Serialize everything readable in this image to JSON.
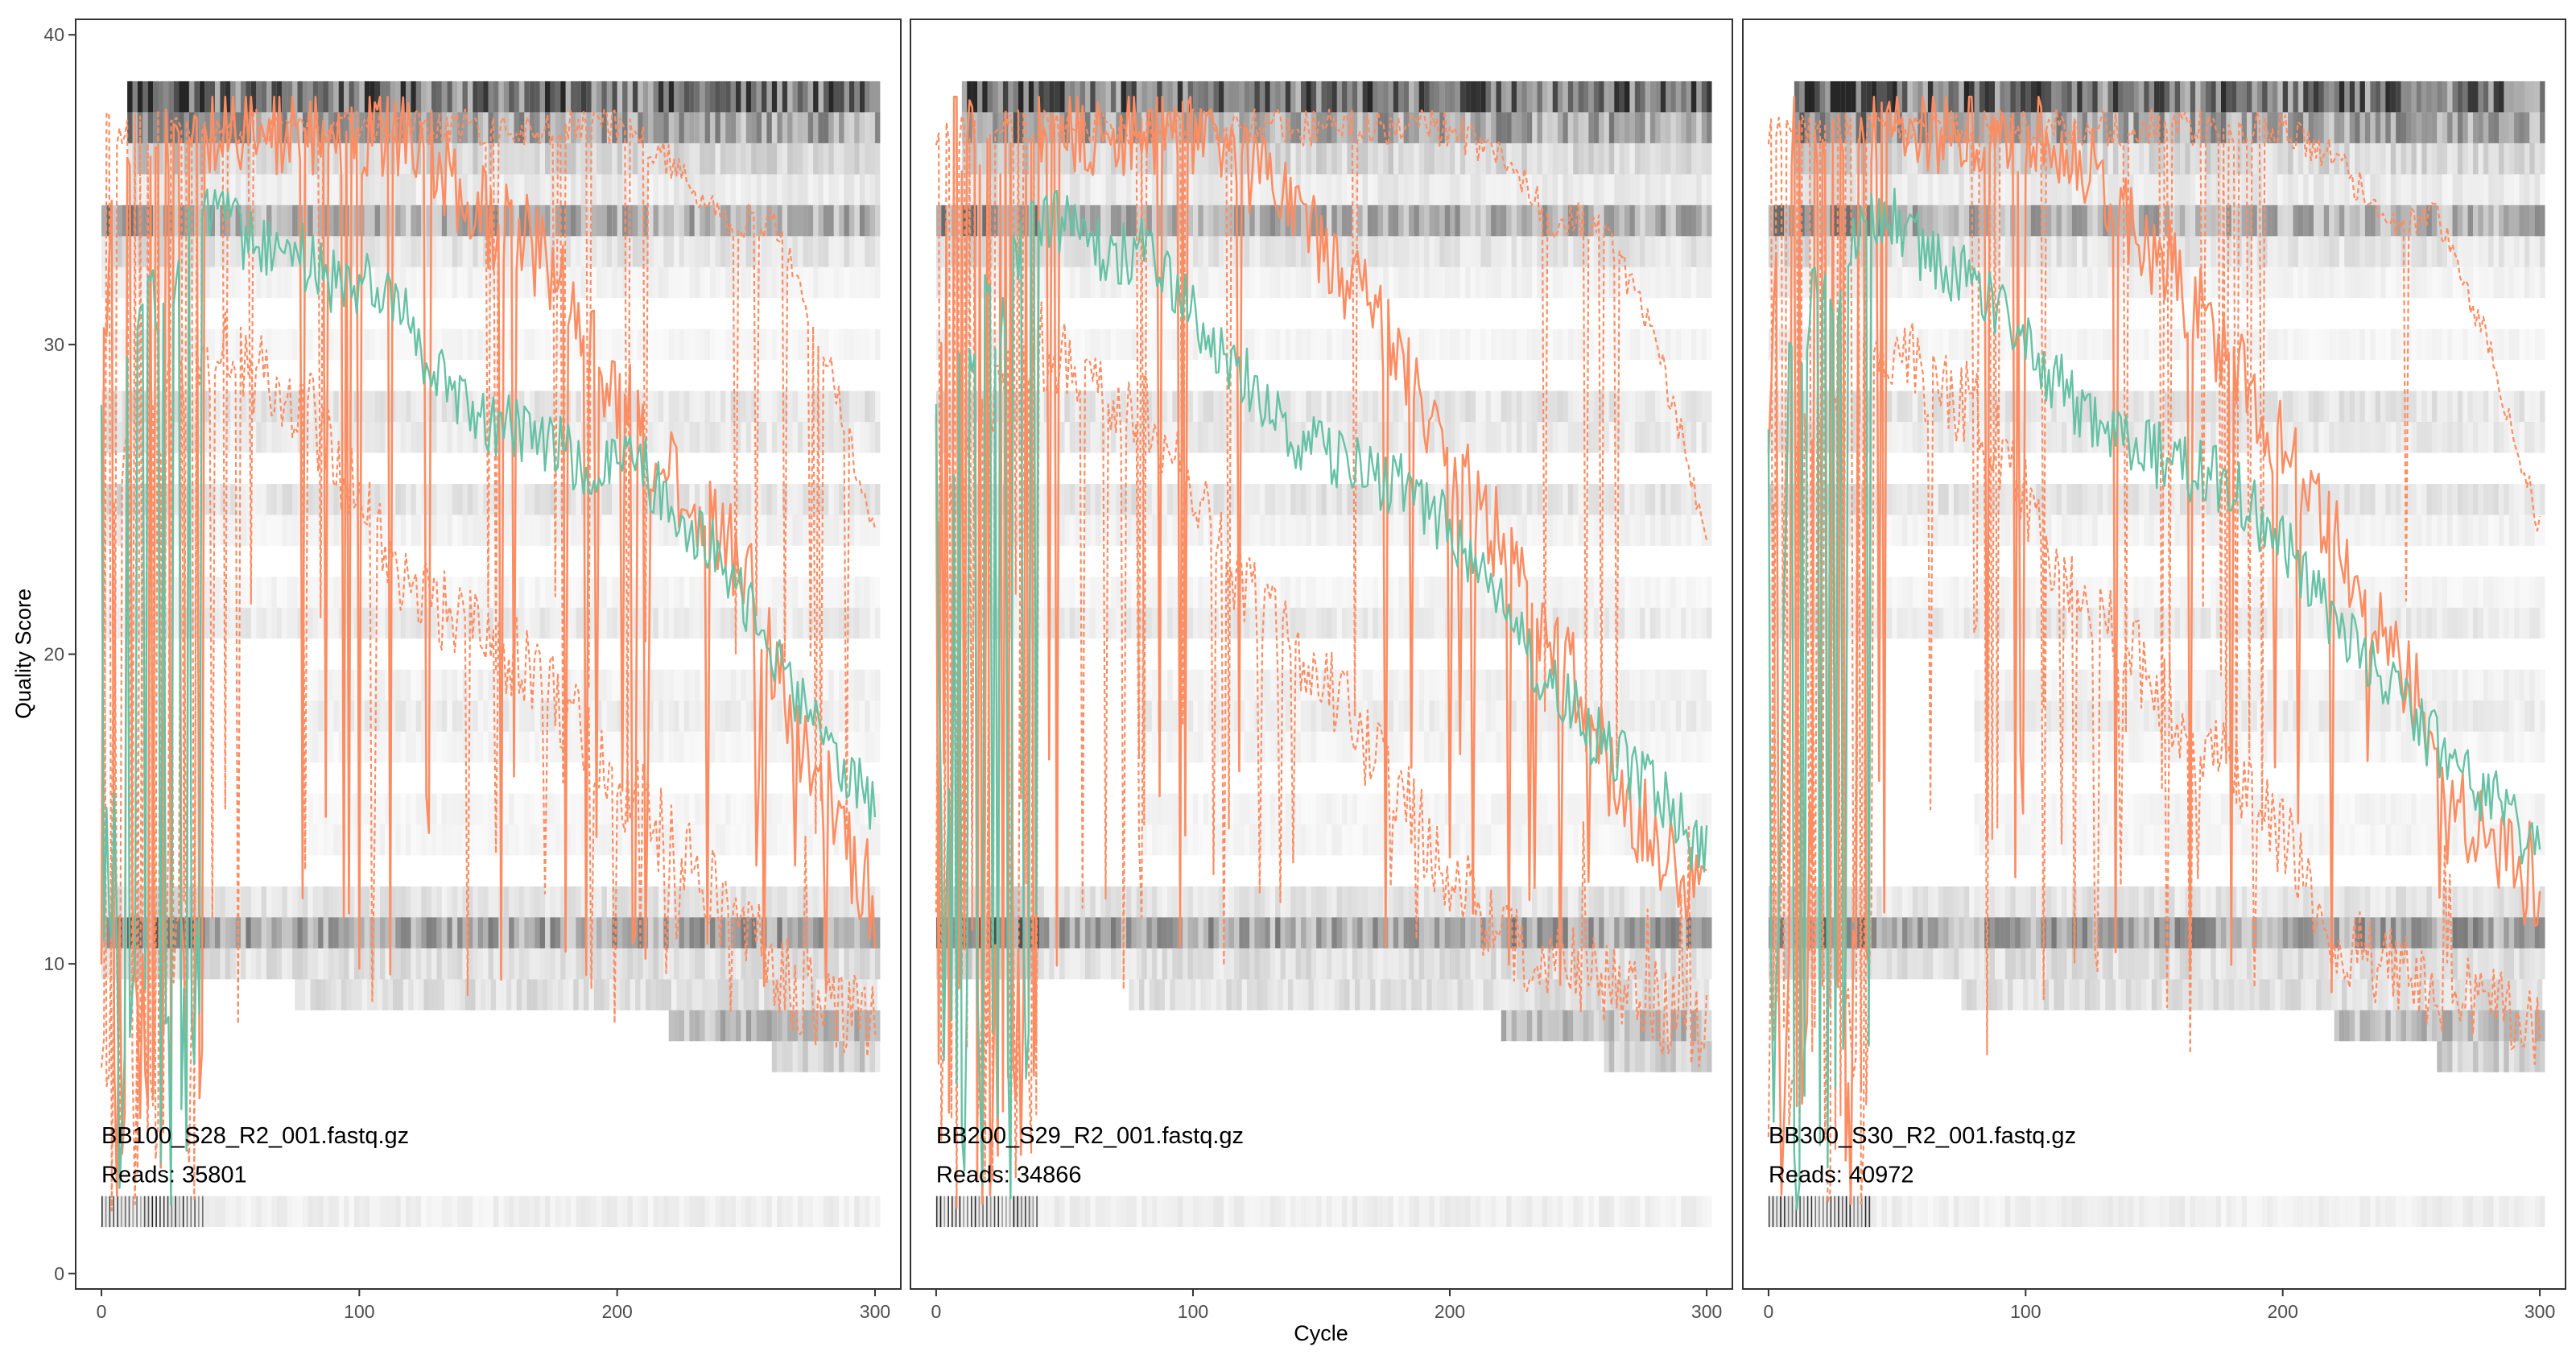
{
  "chart_data": {
    "type": "line",
    "xlabel": "Cycle",
    "ylabel": "Quality Score",
    "xlim": [
      -10,
      310
    ],
    "ylim": [
      -0.5,
      40.5
    ],
    "x_ticks": [
      0,
      100,
      200,
      300
    ],
    "y_ticks": [
      0,
      10,
      20,
      30,
      40
    ],
    "grid": false,
    "colors": {
      "mean": "#66c2a5",
      "median": "#fc8d62",
      "quartiles": "#fc8d62",
      "heatmap": "#000000"
    },
    "panels": [
      {
        "label": "BB100_S28_R2_001.fastq.gz",
        "reads_label": "Reads:",
        "reads": "35801",
        "mean_knots": [
          [
            0,
            28
          ],
          [
            3,
            7
          ],
          [
            8,
            30
          ],
          [
            12,
            28
          ],
          [
            18,
            33
          ],
          [
            25,
            30
          ],
          [
            30,
            33
          ],
          [
            40,
            34
          ],
          [
            50,
            34
          ],
          [
            60,
            33
          ],
          [
            75,
            33
          ],
          [
            90,
            32
          ],
          [
            110,
            32
          ],
          [
            130,
            29
          ],
          [
            150,
            27.5
          ],
          [
            170,
            27
          ],
          [
            190,
            26
          ],
          [
            205,
            26.5
          ],
          [
            220,
            25
          ],
          [
            240,
            23
          ],
          [
            260,
            20
          ],
          [
            280,
            17
          ],
          [
            300,
            15
          ]
        ],
        "median_knots": [
          [
            0,
            28
          ],
          [
            5,
            37
          ],
          [
            40,
            37
          ],
          [
            60,
            37
          ],
          [
            90,
            37
          ],
          [
            110,
            37
          ],
          [
            130,
            36
          ],
          [
            150,
            34
          ],
          [
            170,
            33
          ],
          [
            190,
            30
          ],
          [
            210,
            27
          ],
          [
            230,
            25
          ],
          [
            250,
            23
          ],
          [
            260,
            20
          ],
          [
            280,
            15
          ],
          [
            300,
            12
          ]
        ],
        "upper_quartile_knots": [
          [
            0,
            37
          ],
          [
            40,
            37
          ],
          [
            120,
            37
          ],
          [
            200,
            37
          ],
          [
            220,
            36
          ],
          [
            240,
            34
          ],
          [
            260,
            34
          ],
          [
            280,
            30
          ],
          [
            300,
            24
          ]
        ],
        "lower_quartile_knots": [
          [
            0,
            25
          ],
          [
            40,
            30
          ],
          [
            80,
            28
          ],
          [
            120,
            22
          ],
          [
            160,
            20
          ],
          [
            200,
            16
          ],
          [
            240,
            12
          ],
          [
            270,
            9
          ],
          [
            300,
            8
          ]
        ]
      },
      {
        "label": "BB200_S29_R2_001.fastq.gz",
        "reads_label": "Reads:",
        "reads": "34866",
        "mean_knots": [
          [
            0,
            28
          ],
          [
            3,
            7
          ],
          [
            8,
            30
          ],
          [
            12,
            28
          ],
          [
            18,
            33
          ],
          [
            25,
            30
          ],
          [
            30,
            33
          ],
          [
            40,
            34
          ],
          [
            50,
            34
          ],
          [
            60,
            33
          ],
          [
            80,
            33
          ],
          [
            100,
            31
          ],
          [
            120,
            29
          ],
          [
            140,
            27
          ],
          [
            160,
            26
          ],
          [
            180,
            25.5
          ],
          [
            200,
            24
          ],
          [
            220,
            21.5
          ],
          [
            240,
            19
          ],
          [
            260,
            17
          ],
          [
            280,
            15.5
          ],
          [
            300,
            13.5
          ]
        ],
        "median_knots": [
          [
            0,
            28
          ],
          [
            5,
            37
          ],
          [
            40,
            37
          ],
          [
            60,
            37
          ],
          [
            90,
            37
          ],
          [
            110,
            37
          ],
          [
            130,
            35
          ],
          [
            150,
            33
          ],
          [
            170,
            31
          ],
          [
            190,
            28
          ],
          [
            210,
            25
          ],
          [
            230,
            22
          ],
          [
            250,
            19
          ],
          [
            270,
            15
          ],
          [
            300,
            12
          ]
        ],
        "upper_quartile_knots": [
          [
            0,
            37
          ],
          [
            40,
            37
          ],
          [
            120,
            37
          ],
          [
            200,
            37
          ],
          [
            220,
            36
          ],
          [
            240,
            34
          ],
          [
            260,
            34
          ],
          [
            280,
            30
          ],
          [
            300,
            24
          ]
        ],
        "lower_quartile_knots": [
          [
            0,
            25
          ],
          [
            40,
            30
          ],
          [
            80,
            28
          ],
          [
            120,
            22
          ],
          [
            160,
            18
          ],
          [
            200,
            13
          ],
          [
            220,
            11
          ],
          [
            240,
            10
          ],
          [
            270,
            9
          ],
          [
            300,
            8
          ]
        ]
      },
      {
        "label": "BB300_S30_R2_001.fastq.gz",
        "reads_label": "Reads:",
        "reads": "40972",
        "mean_knots": [
          [
            0,
            28
          ],
          [
            3,
            7
          ],
          [
            8,
            30
          ],
          [
            12,
            28
          ],
          [
            18,
            33
          ],
          [
            25,
            30
          ],
          [
            30,
            33
          ],
          [
            40,
            34
          ],
          [
            50,
            34
          ],
          [
            60,
            33
          ],
          [
            80,
            32
          ],
          [
            100,
            30
          ],
          [
            120,
            28
          ],
          [
            140,
            27
          ],
          [
            160,
            26
          ],
          [
            180,
            25.5
          ],
          [
            200,
            23.5
          ],
          [
            220,
            21
          ],
          [
            240,
            19
          ],
          [
            260,
            17
          ],
          [
            280,
            15.5
          ],
          [
            300,
            13.5
          ]
        ],
        "median_knots": [
          [
            0,
            28
          ],
          [
            5,
            37
          ],
          [
            40,
            37
          ],
          [
            60,
            37
          ],
          [
            90,
            37
          ],
          [
            110,
            37
          ],
          [
            130,
            35
          ],
          [
            150,
            33
          ],
          [
            170,
            31
          ],
          [
            190,
            28
          ],
          [
            210,
            25
          ],
          [
            230,
            22
          ],
          [
            250,
            19
          ],
          [
            270,
            15
          ],
          [
            300,
            12
          ]
        ],
        "upper_quartile_knots": [
          [
            0,
            37
          ],
          [
            40,
            37
          ],
          [
            120,
            37
          ],
          [
            200,
            37
          ],
          [
            220,
            36
          ],
          [
            240,
            34
          ],
          [
            260,
            34
          ],
          [
            280,
            30
          ],
          [
            300,
            24
          ]
        ],
        "lower_quartile_knots": [
          [
            0,
            25
          ],
          [
            40,
            30
          ],
          [
            80,
            28
          ],
          [
            120,
            22
          ],
          [
            160,
            18
          ],
          [
            200,
            14
          ],
          [
            220,
            11
          ],
          [
            240,
            10
          ],
          [
            270,
            9
          ],
          [
            300,
            8
          ]
        ]
      }
    ],
    "heatmap_bands": [
      {
        "q": 38,
        "x": [
          10,
          300
        ],
        "intensity": 0.55
      },
      {
        "q": 37,
        "x": [
          10,
          300
        ],
        "intensity": 0.35
      },
      {
        "q": 36,
        "x": [
          10,
          300
        ],
        "intensity": 0.15
      },
      {
        "q": 35,
        "x": [
          10,
          300
        ],
        "intensity": 0.08
      },
      {
        "q": 34,
        "x": [
          0,
          300
        ],
        "intensity": 0.3
      },
      {
        "q": 33,
        "x": [
          0,
          300
        ],
        "intensity": 0.1
      },
      {
        "q": 32,
        "x": [
          0,
          300
        ],
        "intensity": 0.05
      },
      {
        "q": 30,
        "x": [
          0,
          300
        ],
        "intensity": 0.04
      },
      {
        "q": 28,
        "x": [
          0,
          300
        ],
        "intensity": 0.1
      },
      {
        "q": 27,
        "x": [
          0,
          300
        ],
        "intensity": 0.08
      },
      {
        "q": 25,
        "x": [
          0,
          300
        ],
        "intensity": 0.1
      },
      {
        "q": 24,
        "x": [
          0,
          300
        ],
        "intensity": 0.05
      },
      {
        "q": 22,
        "x": [
          0,
          300
        ],
        "intensity": 0.04
      },
      {
        "q": 21,
        "x": [
          0,
          300
        ],
        "intensity": 0.08
      },
      {
        "q": 19,
        "x": [
          80,
          300
        ],
        "intensity": 0.05
      },
      {
        "q": 18,
        "x": [
          80,
          300
        ],
        "intensity": 0.07
      },
      {
        "q": 17,
        "x": [
          80,
          300
        ],
        "intensity": 0.04
      },
      {
        "q": 15,
        "x": [
          80,
          300
        ],
        "intensity": 0.04
      },
      {
        "q": 14,
        "x": [
          80,
          300
        ],
        "intensity": 0.04
      },
      {
        "q": 12,
        "x": [
          0,
          300
        ],
        "intensity": 0.1
      },
      {
        "q": 11,
        "x": [
          0,
          300
        ],
        "intensity": 0.35
      },
      {
        "q": 10,
        "x": [
          0,
          300
        ],
        "intensity": 0.12
      },
      {
        "q": 9,
        "x": [
          75,
          300
        ],
        "intensity": 0.12
      },
      {
        "q": 8,
        "x": [
          220,
          300
        ],
        "intensity": 0.25
      },
      {
        "q": 7,
        "x": [
          260,
          300
        ],
        "intensity": 0.18
      },
      {
        "q": 2,
        "x": [
          0,
          300
        ],
        "intensity": 0.06
      }
    ]
  }
}
